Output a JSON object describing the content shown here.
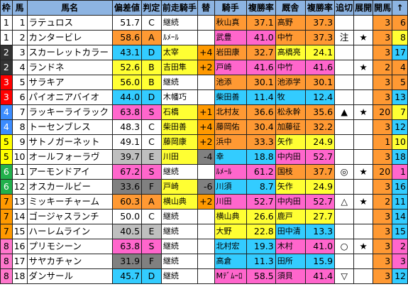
{
  "headers": [
    "枠",
    "馬",
    "馬名",
    "偏差値",
    "判定",
    "前走騎手",
    "替",
    "騎手",
    "複勝率",
    "厩舎",
    "複勝率",
    "追切",
    "展開",
    "開馬",
    "↑"
  ],
  "rows": [
    [
      "1",
      "1",
      "ラテュロス",
      "51.7",
      "C",
      "継続",
      "",
      "秋山真",
      "37.1",
      "高野",
      "37.3",
      "",
      "",
      "3",
      "6"
    ],
    [
      "1",
      "2",
      "カンタービレ",
      "58.6",
      "A",
      "ﾙﾒｰﾙ",
      "",
      "武豊",
      "41.0",
      "中竹",
      "37.3",
      "注",
      "★",
      "3",
      "8"
    ],
    [
      "2",
      "3",
      "スカーレットカラー",
      "43.1",
      "D",
      "太宰",
      "+4",
      "岩田康",
      "32.7",
      "高橋亮",
      "24.1",
      "",
      "",
      "3",
      "17"
    ],
    [
      "2",
      "4",
      "ランドネ",
      "52.6",
      "B",
      "吉田隼",
      "+2",
      "戸崎",
      "41.6",
      "中竹",
      "41.6",
      "",
      "★",
      "2",
      "4"
    ],
    [
      "3",
      "5",
      "サラキア",
      "56.0",
      "B",
      "継続",
      "",
      "池添",
      "30.1",
      "池添学",
      "30.1",
      "",
      "",
      "3",
      "5"
    ],
    [
      "3",
      "6",
      "パイオニアバイオ",
      "44.0",
      "D",
      "木幡巧",
      "",
      "柴田善",
      "11.4",
      "牧",
      "12.4",
      "",
      "",
      "3",
      "13"
    ],
    [
      "4",
      "7",
      "ラッキーライラック",
      "63.8",
      "S",
      "石橋",
      "+1",
      "北村友",
      "36.6",
      "松永幹",
      "35.6",
      "▲",
      "★",
      "20",
      "7"
    ],
    [
      "4",
      "8",
      "トーセンブレス",
      "48.3",
      "C",
      "柴田善",
      "+4",
      "藤岡佑",
      "30.4",
      "加藤征",
      "32.2",
      "",
      "",
      "3",
      "12"
    ],
    [
      "5",
      "9",
      "サトノガーネット",
      "49.1",
      "C",
      "藤岡康",
      "+2",
      "浜中",
      "33.3",
      "矢作",
      "24.9",
      "",
      "",
      "1",
      "10"
    ],
    [
      "5",
      "10",
      "オールフォーラヴ",
      "39.7",
      "E",
      "川田",
      "-4",
      "幸",
      "18.8",
      "中内田",
      "52.7",
      "",
      "",
      "3",
      "18"
    ],
    [
      "6",
      "11",
      "アーモンドアイ",
      "67.2",
      "S",
      "継続",
      "",
      "ﾙﾒｰﾙ",
      "61.2",
      "国枝",
      "37.7",
      "◎",
      "★",
      "20",
      "1"
    ],
    [
      "6",
      "12",
      "オスカールビー",
      "33.6",
      "F",
      "戸崎",
      "-6",
      "川須",
      "8.7",
      "矢作",
      "24.9",
      "",
      "",
      "3",
      "16"
    ],
    [
      "7",
      "13",
      "ミッキーチャーム",
      "60.3",
      "A",
      "横山典",
      "+2",
      "川田",
      "52.7",
      "中内田",
      "52.7",
      "△",
      "★",
      "2",
      "11"
    ],
    [
      "7",
      "14",
      "ゴージャスランチ",
      "50.0",
      "C",
      "継続",
      "",
      "横山典",
      "26.6",
      "鹿戸",
      "27.7",
      "",
      "",
      "3",
      "14"
    ],
    [
      "7",
      "15",
      "ハーレムライン",
      "40.5",
      "E",
      "継続",
      "",
      "大野",
      "22.8",
      "田中清",
      "13.3",
      "",
      "",
      "3",
      "15"
    ],
    [
      "8",
      "16",
      "プリモシーン",
      "63.8",
      "S",
      "継続",
      "",
      "北村宏",
      "19.3",
      "木村",
      "41.0",
      "○",
      "★",
      "3",
      "2"
    ],
    [
      "8",
      "17",
      "サヤカチャン",
      "31.9",
      "F",
      "継続",
      "",
      "高倉",
      "11.3",
      "田所",
      "15.9",
      "",
      "",
      "3",
      "3"
    ],
    [
      "8",
      "18",
      "ダンサール",
      "45.7",
      "D",
      "継続",
      "",
      "Mﾃﾞﾑｰﾛ",
      "58.5",
      "須貝",
      "41.4",
      "▽",
      "",
      "3",
      "12"
    ]
  ],
  "colors": {
    "header": "#8db4e2",
    "waku": {
      "1": "#ffffff",
      "2": "#333333",
      "3": "#ff0000",
      "4": "#3c8cff",
      "5": "#ffff00",
      "6": "#22b14c",
      "7": "#ff9900",
      "8": "#ff77cc"
    },
    "waku_text": {
      "1": "#000000",
      "2": "#ffffff",
      "3": "#ffffff",
      "4": "#ffffff",
      "5": "#000000",
      "6": "#ffffff",
      "7": "#000000",
      "8": "#000000"
    },
    "grade": {
      "S": "#ff66cc",
      "A": "#ff9933",
      "B": "#ffff33",
      "C": "#ffffff",
      "D": "#33ccff",
      "E": "#bfbfbf",
      "F": "#808080"
    },
    "plus": "#ff9900",
    "minus": "#808080",
    "rank_top": "#ff66cc",
    "rank_mid": "#ff9933",
    "rank_low": "#ffff33",
    "rank_bottom": "#33ccff"
  }
}
